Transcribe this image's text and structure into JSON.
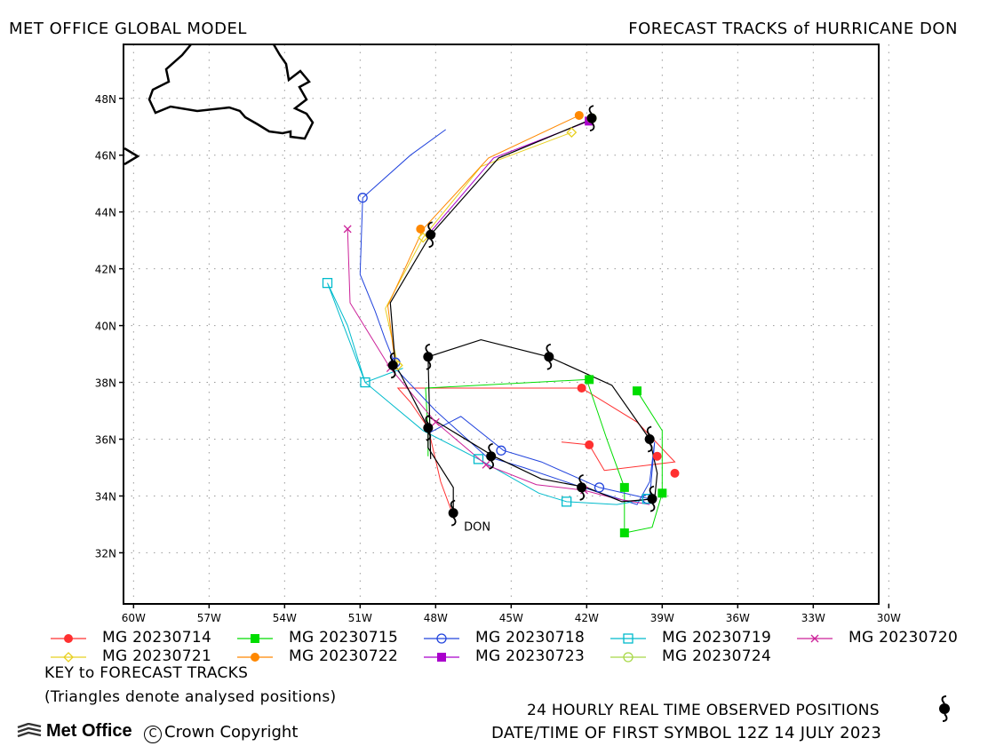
{
  "header": {
    "left_title": "MET OFFICE GLOBAL MODEL",
    "right_title": "FORECAST TRACKS of HURRICANE DON"
  },
  "axes": {
    "lon_range": [
      -60.4,
      -30.4
    ],
    "lat_range": [
      30.2,
      49.9
    ],
    "lon_ticks": [
      {
        "value": -60,
        "label": "60W"
      },
      {
        "value": -57,
        "label": "57W"
      },
      {
        "value": -54,
        "label": "54W"
      },
      {
        "value": -51,
        "label": "51W"
      },
      {
        "value": -48,
        "label": "48W"
      },
      {
        "value": -45,
        "label": "45W"
      },
      {
        "value": -42,
        "label": "42W"
      },
      {
        "value": -39,
        "label": "39W"
      },
      {
        "value": -36,
        "label": "36W"
      },
      {
        "value": -33,
        "label": "33W"
      },
      {
        "value": -30,
        "label": "30W"
      }
    ],
    "lat_ticks": [
      {
        "value": 48,
        "label": "48N"
      },
      {
        "value": 46,
        "label": "46N"
      },
      {
        "value": 44,
        "label": "44N"
      },
      {
        "value": 42,
        "label": "42N"
      },
      {
        "value": 40,
        "label": "40N"
      },
      {
        "value": 38,
        "label": "38N"
      },
      {
        "value": 36,
        "label": "36N"
      },
      {
        "value": 34,
        "label": "34N"
      },
      {
        "value": 32,
        "label": "32N"
      }
    ],
    "grid": true
  },
  "storm_label": "DON",
  "chart_data": {
    "type": "map-tracks",
    "title": "FORECAST TRACKS of HURRICANE DON",
    "observed_track": [
      [
        -47.3,
        33.4
      ],
      [
        -47.3,
        34.3
      ],
      [
        -48.3,
        35.7
      ],
      [
        -48.3,
        36.4
      ],
      [
        -49.4,
        38.3
      ],
      [
        -49.6,
        38.6
      ],
      [
        -49.8,
        40.8
      ],
      [
        -48.2,
        43.2
      ],
      [
        -45.5,
        45.9
      ],
      [
        -41.7,
        47.3
      ]
    ],
    "observed_track_2": [
      [
        -48.2,
        35.3
      ],
      [
        -48.3,
        38.9
      ],
      [
        -46.2,
        39.5
      ],
      [
        -43.5,
        38.9
      ],
      [
        -41.0,
        37.9
      ],
      [
        -39.5,
        36.0
      ],
      [
        -39.2,
        34.8
      ],
      [
        -39.3,
        33.9
      ],
      [
        -40.6,
        33.8
      ],
      [
        -42.0,
        34.3
      ],
      [
        -43.8,
        34.6
      ],
      [
        -45.7,
        35.4
      ],
      [
        -47.0,
        36.1
      ],
      [
        -48.3,
        36.8
      ]
    ],
    "observed_symbols": [
      [
        -47.3,
        33.4
      ],
      [
        -48.3,
        36.4
      ],
      [
        -45.8,
        35.4
      ],
      [
        -42.2,
        34.3
      ],
      [
        -39.4,
        33.9
      ],
      [
        -39.5,
        36.0
      ],
      [
        -43.5,
        38.9
      ],
      [
        -48.3,
        38.9
      ],
      [
        -49.7,
        38.6
      ],
      [
        -48.2,
        43.2
      ],
      [
        -41.8,
        47.3
      ]
    ],
    "series": [
      {
        "name": "MG 20230714",
        "color": "#ff3030",
        "marker": "circle-filled",
        "points": [
          [
            -47.3,
            33.3
          ],
          [
            -47.8,
            34.5
          ],
          [
            -48.3,
            36.4
          ],
          [
            -49.0,
            37.3
          ],
          [
            -49.5,
            37.8
          ],
          [
            -42.2,
            37.8
          ],
          [
            -40.0,
            36.6
          ],
          [
            -38.5,
            35.2
          ],
          [
            -41.3,
            34.9
          ],
          [
            -41.9,
            35.8
          ],
          [
            -43.0,
            35.9
          ]
        ],
        "markers": [
          [
            -48.3,
            36.4
          ],
          [
            -42.2,
            37.8
          ],
          [
            -38.5,
            34.8
          ],
          [
            -39.2,
            35.4
          ],
          [
            -41.9,
            35.8
          ]
        ]
      },
      {
        "name": "MG 20230715",
        "color": "#00dd00",
        "marker": "square-filled",
        "points": [
          [
            -48.3,
            35.4
          ],
          [
            -48.3,
            36.2
          ],
          [
            -48.4,
            37.8
          ],
          [
            -42.0,
            38.1
          ],
          [
            -41.2,
            36.0
          ],
          [
            -40.5,
            34.3
          ],
          [
            -40.5,
            32.7
          ],
          [
            -39.4,
            32.9
          ],
          [
            -39.0,
            34.1
          ],
          [
            -39.0,
            36.3
          ],
          [
            -40.0,
            37.7
          ]
        ],
        "markers": [
          [
            -41.9,
            38.1
          ],
          [
            -40.5,
            34.3
          ],
          [
            -40.5,
            32.7
          ],
          [
            -39.0,
            34.1
          ],
          [
            -40.0,
            37.7
          ]
        ]
      },
      {
        "name": "MG 20230718",
        "color": "#2244dd",
        "marker": "circle-open",
        "points": [
          [
            -48.3,
            36.2
          ],
          [
            -47.0,
            36.8
          ],
          [
            -45.3,
            35.6
          ],
          [
            -43.8,
            35.2
          ],
          [
            -41.5,
            34.3
          ],
          [
            -39.5,
            33.9
          ],
          [
            -39.3,
            35.9
          ],
          [
            -39.5,
            34.5
          ],
          [
            -40.0,
            33.7
          ],
          [
            -42.5,
            34.4
          ],
          [
            -44.5,
            35.0
          ],
          [
            -46.0,
            35.4
          ],
          [
            -48.0,
            37.0
          ],
          [
            -49.5,
            38.4
          ],
          [
            -50.0,
            39.5
          ],
          [
            -50.4,
            40.5
          ],
          [
            -51.0,
            41.8
          ],
          [
            -50.9,
            44.5
          ],
          [
            -49.0,
            46.0
          ],
          [
            -47.6,
            46.9
          ]
        ],
        "markers": [
          [
            -45.4,
            35.6
          ],
          [
            -41.5,
            34.3
          ],
          [
            -39.6,
            33.9
          ],
          [
            -49.6,
            38.7
          ],
          [
            -50.9,
            44.5
          ]
        ]
      },
      {
        "name": "MG 20230719",
        "color": "#00bbcc",
        "marker": "square-open",
        "points": [
          [
            -49.3,
            38.5
          ],
          [
            -50.8,
            38.0
          ],
          [
            -51.5,
            40.0
          ],
          [
            -52.3,
            41.5
          ],
          [
            -50.8,
            38.0
          ],
          [
            -48.5,
            36.3
          ],
          [
            -46.3,
            35.3
          ],
          [
            -43.9,
            34.1
          ],
          [
            -42.8,
            33.8
          ],
          [
            -40.8,
            33.7
          ],
          [
            -39.5,
            33.9
          ]
        ],
        "markers": [
          [
            -52.3,
            41.5
          ],
          [
            -50.8,
            38.0
          ],
          [
            -46.3,
            35.3
          ],
          [
            -42.8,
            33.8
          ],
          [
            -39.6,
            33.9
          ]
        ]
      },
      {
        "name": "MG 20230720",
        "color": "#cc2299",
        "marker": "x",
        "points": [
          [
            -51.5,
            43.4
          ],
          [
            -51.4,
            40.8
          ],
          [
            -49.8,
            38.5
          ],
          [
            -48.0,
            36.6
          ],
          [
            -46.0,
            35.1
          ],
          [
            -44.0,
            34.4
          ],
          [
            -42.1,
            34.2
          ],
          [
            -40.8,
            33.9
          ],
          [
            -39.5,
            33.7
          ]
        ],
        "markers": [
          [
            -51.5,
            43.4
          ],
          [
            -49.8,
            38.5
          ],
          [
            -48.0,
            36.6
          ],
          [
            -46.0,
            35.1
          ],
          [
            -42.1,
            34.2
          ]
        ]
      },
      {
        "name": "MG 20230721",
        "color": "#e8d020",
        "marker": "diamond-open",
        "points": [
          [
            -49.5,
            38.6
          ],
          [
            -50.0,
            40.6
          ],
          [
            -48.5,
            43.1
          ],
          [
            -46.2,
            45.6
          ],
          [
            -42.6,
            46.8
          ]
        ],
        "markers": [
          [
            -49.5,
            38.6
          ],
          [
            -48.5,
            43.1
          ],
          [
            -42.6,
            46.8
          ]
        ]
      },
      {
        "name": "MG 20230722",
        "color": "#ff8800",
        "marker": "circle-filled",
        "points": [
          [
            -49.6,
            38.6
          ],
          [
            -49.9,
            40.7
          ],
          [
            -48.5,
            43.4
          ],
          [
            -45.9,
            45.9
          ],
          [
            -42.3,
            47.4
          ]
        ],
        "markers": [
          [
            -48.6,
            43.4
          ],
          [
            -42.3,
            47.4
          ]
        ]
      },
      {
        "name": "MG 20230723",
        "color": "#aa00cc",
        "marker": "square-filled",
        "points": [
          [
            -48.3,
            43.2
          ],
          [
            -45.7,
            45.9
          ],
          [
            -41.9,
            47.2
          ]
        ],
        "markers": [
          [
            -41.9,
            47.2
          ]
        ]
      },
      {
        "name": "MG 20230724",
        "color": "#a8d848",
        "marker": "circle-open",
        "points": [
          [
            -41.9,
            47.2
          ],
          [
            -41.8,
            47.3
          ]
        ],
        "markers": [
          [
            -41.8,
            47.3
          ]
        ]
      }
    ]
  },
  "legend": {
    "items": [
      "MG 20230714",
      "MG 20230715",
      "MG 20230718",
      "MG 20230719",
      "MG 20230720",
      "MG 20230721",
      "MG 20230722",
      "MG 20230723",
      "MG 20230724"
    ],
    "key_title": "KEY to FORECAST TRACKS",
    "key_note": "(Triangles denote analysed positions)"
  },
  "footer": {
    "observed_note": "24 HOURLY REAL TIME OBSERVED POSITIONS",
    "datetime_note": "DATE/TIME OF FIRST SYMBOL 12Z 14 JULY 2023",
    "logo_text": "Met Office",
    "copyright_text": "Crown Copyright"
  }
}
